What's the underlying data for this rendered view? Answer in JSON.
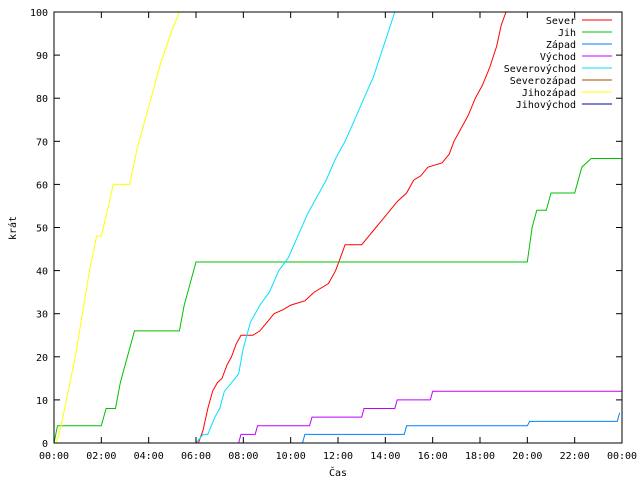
{
  "chart_data": {
    "type": "line",
    "xlabel": "Čas",
    "ylabel": "krát",
    "xlim": [
      0,
      24
    ],
    "ylim": [
      0,
      100
    ],
    "xticks": [
      0,
      2,
      4,
      6,
      8,
      10,
      12,
      14,
      16,
      18,
      20,
      22,
      24
    ],
    "xtick_labels": [
      "00:00",
      "02:00",
      "04:00",
      "06:00",
      "08:00",
      "10:00",
      "12:00",
      "14:00",
      "16:00",
      "18:00",
      "20:00",
      "22:00",
      "00:00"
    ],
    "yticks": [
      0,
      10,
      20,
      30,
      40,
      50,
      60,
      70,
      80,
      90,
      100
    ],
    "ytick_labels": [
      "0",
      "10",
      "20",
      "30",
      "40",
      "50",
      "60",
      "70",
      "80",
      "90",
      "100"
    ],
    "grid": false,
    "legend_position": "top-right",
    "series": [
      {
        "name": "Sever",
        "color": "#ff0000",
        "points": [
          [
            6.1,
            0
          ],
          [
            6.3,
            3
          ],
          [
            6.5,
            8
          ],
          [
            6.7,
            12
          ],
          [
            6.9,
            14
          ],
          [
            7.1,
            15
          ],
          [
            7.3,
            18
          ],
          [
            7.5,
            20
          ],
          [
            7.7,
            23
          ],
          [
            7.9,
            25
          ],
          [
            8.4,
            25
          ],
          [
            8.7,
            26
          ],
          [
            9.0,
            28
          ],
          [
            9.3,
            30
          ],
          [
            9.7,
            31
          ],
          [
            10.0,
            32
          ],
          [
            10.6,
            33
          ],
          [
            11.0,
            35
          ],
          [
            11.6,
            37
          ],
          [
            11.9,
            40
          ],
          [
            12.1,
            43
          ],
          [
            12.3,
            46
          ],
          [
            13.0,
            46
          ],
          [
            13.3,
            48
          ],
          [
            13.6,
            50
          ],
          [
            13.9,
            52
          ],
          [
            14.2,
            54
          ],
          [
            14.5,
            56
          ],
          [
            14.9,
            58
          ],
          [
            15.2,
            61
          ],
          [
            15.5,
            62
          ],
          [
            15.8,
            64
          ],
          [
            16.4,
            65
          ],
          [
            16.7,
            67
          ],
          [
            16.9,
            70
          ],
          [
            17.2,
            73
          ],
          [
            17.5,
            76
          ],
          [
            17.8,
            80
          ],
          [
            18.1,
            83
          ],
          [
            18.4,
            87
          ],
          [
            18.7,
            92
          ],
          [
            18.9,
            97
          ],
          [
            19.1,
            100
          ]
        ]
      },
      {
        "name": "Jih",
        "color": "#00c000",
        "points": [
          [
            0,
            0
          ],
          [
            0.15,
            4
          ],
          [
            2.0,
            4
          ],
          [
            2.2,
            8
          ],
          [
            2.6,
            8
          ],
          [
            2.8,
            14
          ],
          [
            3.1,
            20
          ],
          [
            3.4,
            26
          ],
          [
            5.3,
            26
          ],
          [
            5.5,
            32
          ],
          [
            5.8,
            38
          ],
          [
            6.0,
            42
          ],
          [
            20.0,
            42
          ],
          [
            20.2,
            50
          ],
          [
            20.4,
            54
          ],
          [
            20.8,
            54
          ],
          [
            21.0,
            58
          ],
          [
            22.0,
            58
          ],
          [
            22.3,
            64
          ],
          [
            22.7,
            66
          ],
          [
            24.0,
            66
          ]
        ]
      },
      {
        "name": "Západ",
        "color": "#0080ff",
        "points": [
          [
            10.5,
            0
          ],
          [
            10.6,
            2
          ],
          [
            14.8,
            2
          ],
          [
            14.9,
            4
          ],
          [
            20.0,
            4
          ],
          [
            20.1,
            5
          ],
          [
            23.8,
            5
          ],
          [
            23.9,
            7
          ]
        ]
      },
      {
        "name": "Východ",
        "color": "#c000ff",
        "points": [
          [
            7.8,
            0
          ],
          [
            7.9,
            2
          ],
          [
            8.5,
            2
          ],
          [
            8.6,
            4
          ],
          [
            10.8,
            4
          ],
          [
            10.9,
            6
          ],
          [
            13.0,
            6
          ],
          [
            13.1,
            8
          ],
          [
            14.4,
            8
          ],
          [
            14.5,
            10
          ],
          [
            15.9,
            10
          ],
          [
            16.0,
            12
          ],
          [
            24.0,
            12
          ]
        ]
      },
      {
        "name": "Severovýchod",
        "color": "#00e0ff",
        "points": [
          [
            6.0,
            0
          ],
          [
            6.3,
            2
          ],
          [
            6.5,
            2
          ],
          [
            6.8,
            6
          ],
          [
            7.0,
            8
          ],
          [
            7.2,
            12
          ],
          [
            7.5,
            14
          ],
          [
            7.8,
            16
          ],
          [
            8.0,
            22
          ],
          [
            8.3,
            28
          ],
          [
            8.7,
            32
          ],
          [
            9.1,
            35
          ],
          [
            9.5,
            40
          ],
          [
            9.9,
            43
          ],
          [
            10.3,
            48
          ],
          [
            10.7,
            53
          ],
          [
            11.1,
            57
          ],
          [
            11.5,
            61
          ],
          [
            11.9,
            66
          ],
          [
            12.3,
            70
          ],
          [
            12.7,
            75
          ],
          [
            13.1,
            80
          ],
          [
            13.5,
            85
          ],
          [
            13.8,
            90
          ],
          [
            14.1,
            95
          ],
          [
            14.4,
            100
          ]
        ]
      },
      {
        "name": "Severozápad",
        "color": "#a05000",
        "points": []
      },
      {
        "name": "Jihozápad",
        "color": "#ffff00",
        "points": [
          [
            0.1,
            0
          ],
          [
            0.3,
            4
          ],
          [
            0.6,
            12
          ],
          [
            0.9,
            20
          ],
          [
            1.2,
            30
          ],
          [
            1.5,
            40
          ],
          [
            1.8,
            48
          ],
          [
            2.0,
            48
          ],
          [
            2.3,
            55
          ],
          [
            2.5,
            60
          ],
          [
            3.2,
            60
          ],
          [
            3.5,
            68
          ],
          [
            4.0,
            78
          ],
          [
            4.5,
            88
          ],
          [
            5.0,
            96
          ],
          [
            5.3,
            100
          ]
        ]
      },
      {
        "name": "Jihovýchod",
        "color": "#0000a0",
        "points": []
      }
    ]
  }
}
